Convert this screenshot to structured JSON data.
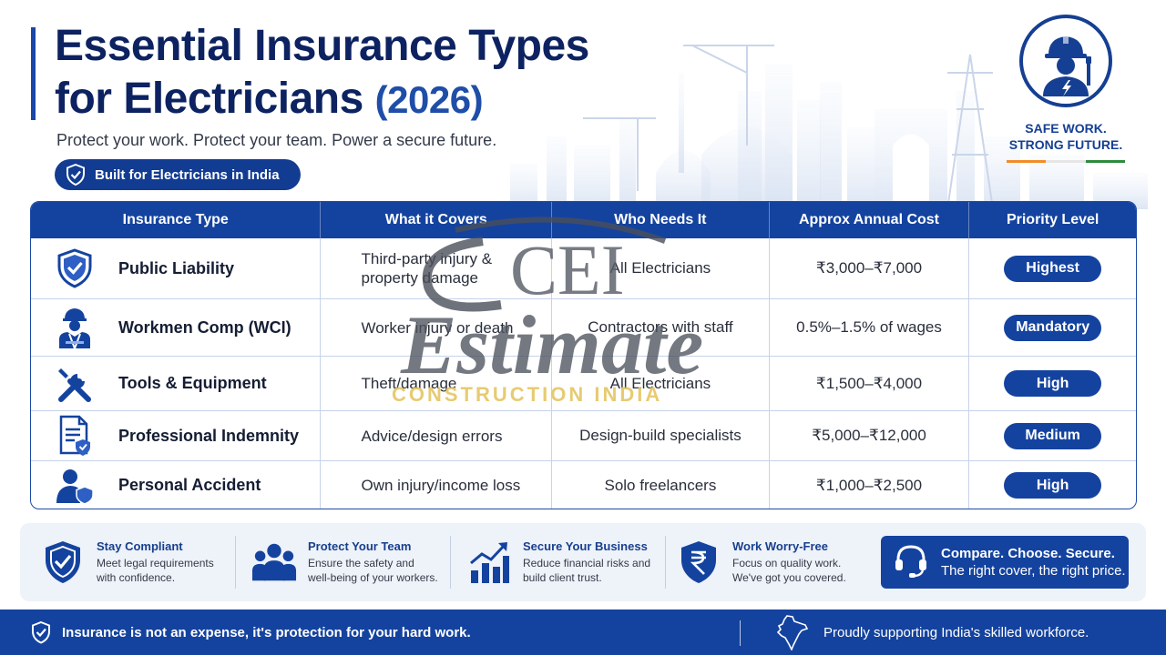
{
  "header": {
    "title_line1": "Essential Insurance Types",
    "title_line2": "for Electricians",
    "title_year": "(2026)",
    "subtitle": "Protect your work. Protect your team. Power a secure future.",
    "tag": "Built for Electricians in India"
  },
  "badge": {
    "line1": "SAFE WORK.",
    "line2": "STRONG FUTURE.",
    "icon": "electrician-hardhat-icon",
    "flag_colors": [
      "#f28c28",
      "#ffffff",
      "#2e8b3e"
    ]
  },
  "table": {
    "headers": [
      "Insurance Type",
      "What it Covers",
      "Who Needs It",
      "Approx Annual Cost",
      "Priority Level"
    ],
    "rows": [
      {
        "icon": "shield-check-icon",
        "type": "Public Liability",
        "covers_1": "Third-party injury &",
        "covers_2": "property damage",
        "who": "All Electricians",
        "cost": "₹3,000–₹7,000",
        "priority": "Highest"
      },
      {
        "icon": "worker-icon",
        "type": "Workmen Comp (WCI)",
        "covers_1": "Worker injury or death",
        "covers_2": "",
        "who": "Contractors with staff",
        "cost": "0.5%–1.5% of wages",
        "priority": "Mandatory"
      },
      {
        "icon": "tools-icon",
        "type": "Tools & Equipment",
        "covers_1": "Theft/damage",
        "covers_2": "",
        "who": "All Electricians",
        "cost": "₹1,500–₹4,000",
        "priority": "High"
      },
      {
        "icon": "document-shield-icon",
        "type": "Professional Indemnity",
        "covers_1": "Advice/design errors",
        "covers_2": "",
        "who": "Design-build specialists",
        "cost": "₹5,000–₹12,000",
        "priority": "Medium"
      },
      {
        "icon": "person-shield-icon",
        "type": "Personal Accident",
        "covers_1": "Own injury/income loss",
        "covers_2": "",
        "who": "Solo freelancers",
        "cost": "₹1,000–₹2,500",
        "priority": "High"
      }
    ]
  },
  "watermark": {
    "brand": "CEI",
    "script": "Estimate",
    "tagline": "CONSTRUCTION INDIA"
  },
  "benefits": [
    {
      "icon": "shield-check-icon",
      "title": "Stay Compliant",
      "desc_1": "Meet legal requirements",
      "desc_2": "with confidence."
    },
    {
      "icon": "team-icon",
      "title": "Protect Your Team",
      "desc_1": "Ensure the safety and",
      "desc_2": "well-being of your workers."
    },
    {
      "icon": "growth-chart-icon",
      "title": "Secure Your Business",
      "desc_1": "Reduce financial risks and",
      "desc_2": "build client trust."
    },
    {
      "icon": "rupee-shield-icon",
      "title": "Work Worry-Free",
      "desc_1": "Focus on quality work.",
      "desc_2": "We've got you covered."
    }
  ],
  "cta": {
    "icon": "headset-icon",
    "line1": "Compare. Choose. Secure.",
    "line2": "The right cover, the right price."
  },
  "footer": {
    "left": "Insurance is not an expense, it's protection for your hard work.",
    "right": "Proudly supporting India's skilled workforce.",
    "map_icon": "india-map-icon"
  },
  "colors": {
    "primary": "#14439f",
    "title": "#0d2261",
    "accent_watermark": "#e3c35a"
  }
}
